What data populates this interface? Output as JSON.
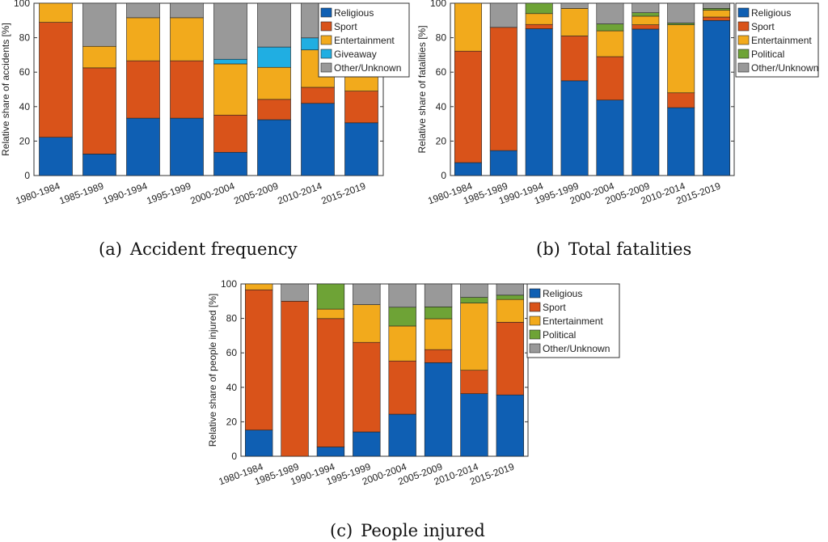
{
  "colors": {
    "Religious": "#0f5fb3",
    "Sport": "#d9531a",
    "Entertainment": "#f2aa1c",
    "Political": "#6ea336",
    "Giveaway": "#20aee2",
    "Other/Unknown": "#999999"
  },
  "captions": [
    {
      "tag": "(a)",
      "text": "Accident frequency"
    },
    {
      "tag": "(b)",
      "text": "Total fatalities"
    },
    {
      "tag": "(c)",
      "text": "People injured"
    }
  ],
  "chart_data": [
    {
      "type": "bar",
      "stacked": true,
      "title": "",
      "xlabel": "",
      "ylabel": "Relative share of accidents [%]",
      "ylim": [
        0,
        100
      ],
      "yticks": [
        0,
        20,
        40,
        60,
        80,
        100
      ],
      "categories": [
        "1980-1984",
        "1985-1989",
        "1990-1994",
        "1995-1999",
        "2000-2004",
        "2005-2009",
        "2010-2014",
        "2015-2019"
      ],
      "legend": "top-right",
      "grid": false,
      "series": [
        {
          "name": "Religious",
          "values": [
            22.2,
            12.5,
            33.3,
            33.3,
            13.5,
            32.4,
            41.9,
            30.6
          ]
        },
        {
          "name": "Sport",
          "values": [
            66.7,
            50.0,
            33.3,
            33.3,
            21.6,
            11.8,
            9.3,
            18.4
          ]
        },
        {
          "name": "Entertainment",
          "values": [
            11.1,
            12.5,
            25.0,
            25.0,
            29.7,
            18.6,
            21.7,
            24.5
          ]
        },
        {
          "name": "Giveaway",
          "values": [
            0,
            0,
            0,
            0,
            2.7,
            11.8,
            7.0,
            12.2
          ]
        },
        {
          "name": "Other/Unknown",
          "values": [
            0,
            25.0,
            8.4,
            8.4,
            32.5,
            25.4,
            20.1,
            14.3
          ]
        }
      ]
    },
    {
      "type": "bar",
      "stacked": true,
      "title": "",
      "xlabel": "",
      "ylabel": "Relative share of fatalities [%]",
      "ylim": [
        0,
        100
      ],
      "yticks": [
        0,
        20,
        40,
        60,
        80,
        100
      ],
      "categories": [
        "1980-1984",
        "1985-1989",
        "1990-1994",
        "1995-1999",
        "2000-2004",
        "2005-2009",
        "2010-2014",
        "2015-2019"
      ],
      "legend": "top-right",
      "grid": false,
      "series": [
        {
          "name": "Religious",
          "values": [
            7.5,
            14.5,
            85.2,
            55.0,
            43.8,
            85.0,
            39.4,
            90.0
          ]
        },
        {
          "name": "Sport",
          "values": [
            64.7,
            71.5,
            2.5,
            26.0,
            25.2,
            2.5,
            8.6,
            2.0
          ]
        },
        {
          "name": "Entertainment",
          "values": [
            27.8,
            0,
            6.3,
            16.0,
            15.0,
            5.0,
            39.5,
            4.0
          ]
        },
        {
          "name": "Political",
          "values": [
            0,
            0,
            6.0,
            0,
            4.0,
            2.0,
            1.0,
            1.0
          ]
        },
        {
          "name": "Other/Unknown",
          "values": [
            0,
            14.0,
            0,
            3.0,
            12.0,
            5.5,
            11.5,
            3.0
          ]
        }
      ]
    },
    {
      "type": "bar",
      "stacked": true,
      "title": "",
      "xlabel": "",
      "ylabel": "Relative share of people injured [%]",
      "ylim": [
        0,
        100
      ],
      "yticks": [
        0,
        20,
        40,
        60,
        80,
        100
      ],
      "categories": [
        "1980-1984",
        "1985-1989",
        "1990-1994",
        "1995-1999",
        "2000-2004",
        "2005-2009",
        "2010-2014",
        "2015-2019"
      ],
      "legend": "top-right",
      "grid": false,
      "series": [
        {
          "name": "Religious",
          "values": [
            15.2,
            0,
            5.4,
            14.1,
            24.4,
            54.3,
            36.3,
            35.6
          ]
        },
        {
          "name": "Sport",
          "values": [
            81.4,
            90.0,
            74.5,
            52.0,
            30.9,
            7.6,
            13.6,
            42.2
          ]
        },
        {
          "name": "Entertainment",
          "values": [
            3.4,
            0,
            5.5,
            21.9,
            20.3,
            17.9,
            39.0,
            13.2
          ]
        },
        {
          "name": "Political",
          "values": [
            0,
            0,
            14.6,
            0,
            10.9,
            6.9,
            3.3,
            2.5
          ]
        },
        {
          "name": "Other/Unknown",
          "values": [
            0,
            10.0,
            0,
            12.0,
            13.5,
            13.3,
            7.8,
            6.5
          ]
        }
      ]
    }
  ]
}
